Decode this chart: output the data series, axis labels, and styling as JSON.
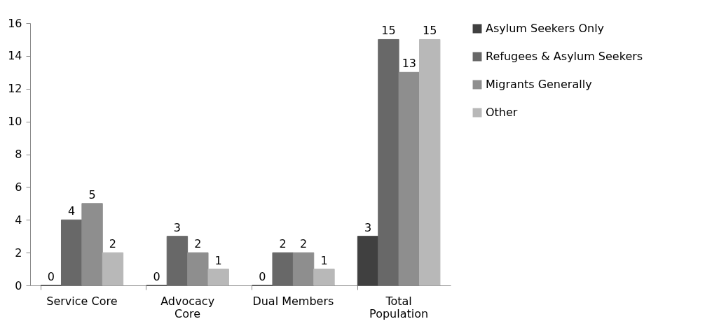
{
  "chart_data": {
    "type": "bar",
    "categories": [
      "Service Core",
      "Advocacy Core",
      "Dual Members",
      "Total Population"
    ],
    "series": [
      {
        "name": "Asylum Seekers Only",
        "color": "#404040",
        "values": [
          0,
          0,
          0,
          3
        ]
      },
      {
        "name": "Refugees & Asylum Seekers",
        "color": "#686868",
        "values": [
          4,
          3,
          2,
          15
        ]
      },
      {
        "name": "Migrants Generally",
        "color": "#8e8e8e",
        "values": [
          5,
          2,
          2,
          13
        ]
      },
      {
        "name": "Other",
        "color": "#b8b8b8",
        "values": [
          2,
          1,
          1,
          15
        ]
      }
    ],
    "ylim": [
      0,
      16
    ],
    "yticks": [
      0,
      2,
      4,
      6,
      8,
      10,
      12,
      14,
      16
    ],
    "data_labels": true,
    "grid": false,
    "legend": "right"
  }
}
